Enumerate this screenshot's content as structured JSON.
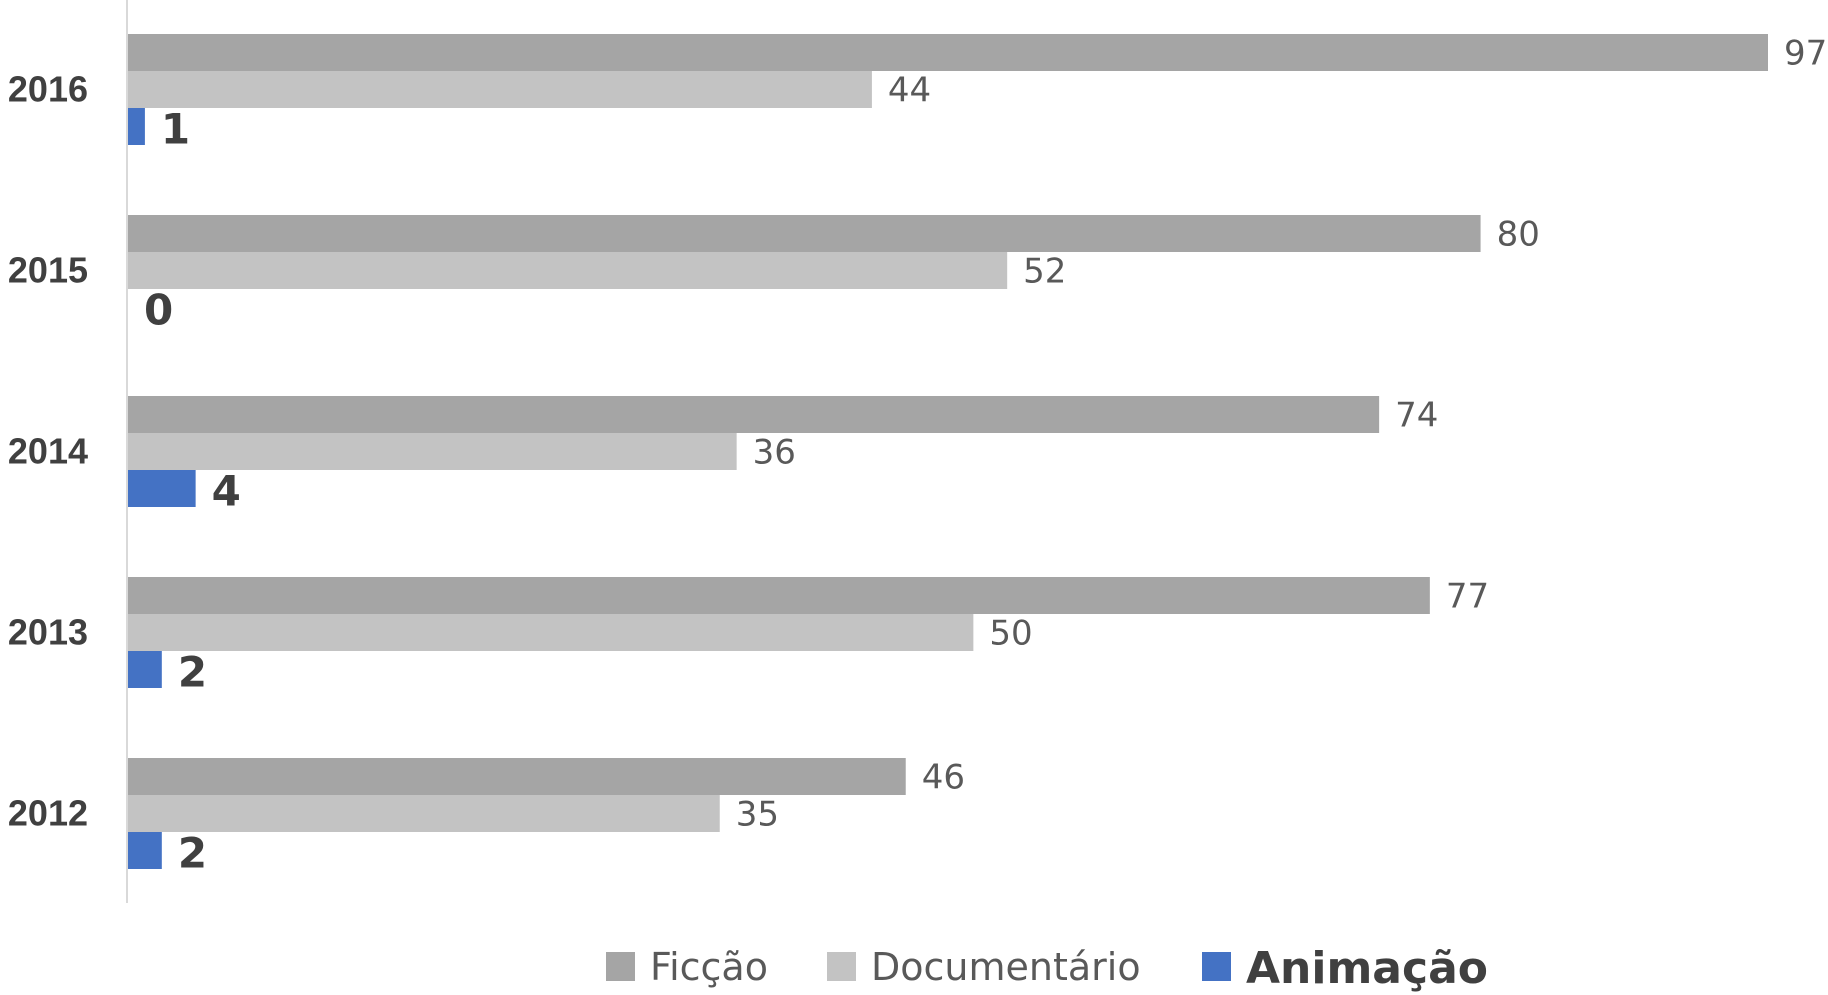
{
  "chart_data": {
    "type": "bar",
    "orientation": "horizontal",
    "categories": [
      "2016",
      "2015",
      "2014",
      "2013",
      "2012"
    ],
    "series": [
      {
        "name": "Ficção",
        "color": "#a5a5a5",
        "values": [
          97,
          80,
          74,
          77,
          46
        ],
        "emphasis": false
      },
      {
        "name": "Documentário",
        "color": "#c3c3c3",
        "values": [
          44,
          52,
          36,
          50,
          35
        ],
        "emphasis": false
      },
      {
        "name": "Animação",
        "color": "#4472c4",
        "values": [
          1,
          0,
          4,
          2,
          2
        ],
        "emphasis": true
      }
    ],
    "title": "",
    "xlabel": "",
    "ylabel": "",
    "xlim": [
      0,
      97
    ],
    "grid": false,
    "data_labels": true,
    "legend_position": "bottom"
  },
  "colors": {
    "text": "#595959",
    "bold_text": "#404040",
    "axis": "#d9d9d9"
  }
}
